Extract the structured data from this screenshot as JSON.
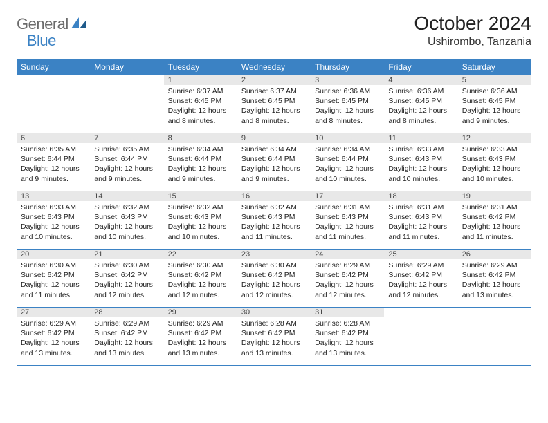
{
  "brand": {
    "text_general": "General",
    "text_blue": "Blue",
    "general_color": "#6b6b6b",
    "blue_color": "#3b82c4"
  },
  "title": "October 2024",
  "location": "Ushirombo, Tanzania",
  "theme": {
    "header_bg": "#3b82c4",
    "header_text": "#ffffff",
    "daynum_bg": "#e8e8e8",
    "border_color": "#3b82c4",
    "body_text": "#222222",
    "page_bg": "#ffffff"
  },
  "weekday_labels": [
    "Sunday",
    "Monday",
    "Tuesday",
    "Wednesday",
    "Thursday",
    "Friday",
    "Saturday"
  ],
  "weeks": [
    [
      {
        "day": null
      },
      {
        "day": null
      },
      {
        "day": 1,
        "sunrise": "6:37 AM",
        "sunset": "6:45 PM",
        "daylight": "12 hours and 8 minutes."
      },
      {
        "day": 2,
        "sunrise": "6:37 AM",
        "sunset": "6:45 PM",
        "daylight": "12 hours and 8 minutes."
      },
      {
        "day": 3,
        "sunrise": "6:36 AM",
        "sunset": "6:45 PM",
        "daylight": "12 hours and 8 minutes."
      },
      {
        "day": 4,
        "sunrise": "6:36 AM",
        "sunset": "6:45 PM",
        "daylight": "12 hours and 8 minutes."
      },
      {
        "day": 5,
        "sunrise": "6:36 AM",
        "sunset": "6:45 PM",
        "daylight": "12 hours and 9 minutes."
      }
    ],
    [
      {
        "day": 6,
        "sunrise": "6:35 AM",
        "sunset": "6:44 PM",
        "daylight": "12 hours and 9 minutes."
      },
      {
        "day": 7,
        "sunrise": "6:35 AM",
        "sunset": "6:44 PM",
        "daylight": "12 hours and 9 minutes."
      },
      {
        "day": 8,
        "sunrise": "6:34 AM",
        "sunset": "6:44 PM",
        "daylight": "12 hours and 9 minutes."
      },
      {
        "day": 9,
        "sunrise": "6:34 AM",
        "sunset": "6:44 PM",
        "daylight": "12 hours and 9 minutes."
      },
      {
        "day": 10,
        "sunrise": "6:34 AM",
        "sunset": "6:44 PM",
        "daylight": "12 hours and 10 minutes."
      },
      {
        "day": 11,
        "sunrise": "6:33 AM",
        "sunset": "6:43 PM",
        "daylight": "12 hours and 10 minutes."
      },
      {
        "day": 12,
        "sunrise": "6:33 AM",
        "sunset": "6:43 PM",
        "daylight": "12 hours and 10 minutes."
      }
    ],
    [
      {
        "day": 13,
        "sunrise": "6:33 AM",
        "sunset": "6:43 PM",
        "daylight": "12 hours and 10 minutes."
      },
      {
        "day": 14,
        "sunrise": "6:32 AM",
        "sunset": "6:43 PM",
        "daylight": "12 hours and 10 minutes."
      },
      {
        "day": 15,
        "sunrise": "6:32 AM",
        "sunset": "6:43 PM",
        "daylight": "12 hours and 10 minutes."
      },
      {
        "day": 16,
        "sunrise": "6:32 AM",
        "sunset": "6:43 PM",
        "daylight": "12 hours and 11 minutes."
      },
      {
        "day": 17,
        "sunrise": "6:31 AM",
        "sunset": "6:43 PM",
        "daylight": "12 hours and 11 minutes."
      },
      {
        "day": 18,
        "sunrise": "6:31 AM",
        "sunset": "6:43 PM",
        "daylight": "12 hours and 11 minutes."
      },
      {
        "day": 19,
        "sunrise": "6:31 AM",
        "sunset": "6:42 PM",
        "daylight": "12 hours and 11 minutes."
      }
    ],
    [
      {
        "day": 20,
        "sunrise": "6:30 AM",
        "sunset": "6:42 PM",
        "daylight": "12 hours and 11 minutes."
      },
      {
        "day": 21,
        "sunrise": "6:30 AM",
        "sunset": "6:42 PM",
        "daylight": "12 hours and 12 minutes."
      },
      {
        "day": 22,
        "sunrise": "6:30 AM",
        "sunset": "6:42 PM",
        "daylight": "12 hours and 12 minutes."
      },
      {
        "day": 23,
        "sunrise": "6:30 AM",
        "sunset": "6:42 PM",
        "daylight": "12 hours and 12 minutes."
      },
      {
        "day": 24,
        "sunrise": "6:29 AM",
        "sunset": "6:42 PM",
        "daylight": "12 hours and 12 minutes."
      },
      {
        "day": 25,
        "sunrise": "6:29 AM",
        "sunset": "6:42 PM",
        "daylight": "12 hours and 12 minutes."
      },
      {
        "day": 26,
        "sunrise": "6:29 AM",
        "sunset": "6:42 PM",
        "daylight": "12 hours and 13 minutes."
      }
    ],
    [
      {
        "day": 27,
        "sunrise": "6:29 AM",
        "sunset": "6:42 PM",
        "daylight": "12 hours and 13 minutes."
      },
      {
        "day": 28,
        "sunrise": "6:29 AM",
        "sunset": "6:42 PM",
        "daylight": "12 hours and 13 minutes."
      },
      {
        "day": 29,
        "sunrise": "6:29 AM",
        "sunset": "6:42 PM",
        "daylight": "12 hours and 13 minutes."
      },
      {
        "day": 30,
        "sunrise": "6:28 AM",
        "sunset": "6:42 PM",
        "daylight": "12 hours and 13 minutes."
      },
      {
        "day": 31,
        "sunrise": "6:28 AM",
        "sunset": "6:42 PM",
        "daylight": "12 hours and 13 minutes."
      },
      {
        "day": null
      },
      {
        "day": null
      }
    ]
  ],
  "labels": {
    "sunrise": "Sunrise:",
    "sunset": "Sunset:",
    "daylight": "Daylight:"
  }
}
